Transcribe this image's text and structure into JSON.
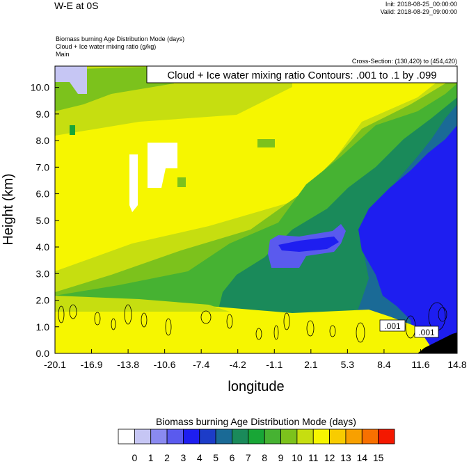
{
  "header": {
    "title": "W-E at 0S",
    "init": "Init: 2018-08-25_00:00:00",
    "valid": "Valid: 2018-08-29_09:00:00",
    "field1": "Biomass burning Age Distribution Mode   (days)",
    "field2": "Cloud + Ice water mixing ratio   (g/kg)",
    "field3": "Main",
    "cross_section": "Cross-Section: (130,420) to (454,420)"
  },
  "chart_data": {
    "type": "heatmap",
    "title": "W-E at 0S",
    "contour_label": "Cloud + Ice water mixing ratio Contours: .001 to .1 by .099",
    "xlabel": "longitude",
    "ylabel": "Height (km)",
    "xlim": [
      -20.1,
      14.8
    ],
    "ylim": [
      0.0,
      10.8
    ],
    "x_ticks": [
      "-20.1",
      "-16.9",
      "-13.8",
      "-10.6",
      "-7.4",
      "-4.2",
      "-1.1",
      "2.1",
      "5.3",
      "8.4",
      "11.6",
      "14.8"
    ],
    "y_ticks": [
      "0.0",
      "1.0",
      "2.0",
      "3.0",
      "4.0",
      "5.0",
      "6.0",
      "7.0",
      "8.0",
      "9.0",
      "10.0"
    ],
    "contour_annotations": [
      {
        "text": ".001",
        "lon": 9.0,
        "height": 1.0
      },
      {
        "text": ".001",
        "lon": 12.4,
        "height": 0.8
      }
    ],
    "colorbar": {
      "title": "Biomass burning Age Distribution Mode  (days)",
      "labels": [
        "0",
        "1",
        "2",
        "3",
        "4",
        "5",
        "6",
        "7",
        "8",
        "9",
        "10",
        "11",
        "12",
        "13",
        "14",
        "15"
      ],
      "colors": [
        "#ffffff",
        "#c6c6f4",
        "#8a8af0",
        "#5a5aee",
        "#1e1ef0",
        "#1c3cc8",
        "#1a6a96",
        "#1a8a5a",
        "#18a636",
        "#46b232",
        "#7cc21c",
        "#c6de10",
        "#f6f600",
        "#f8cc00",
        "#f8a000",
        "#f87000",
        "#f41800"
      ]
    }
  }
}
